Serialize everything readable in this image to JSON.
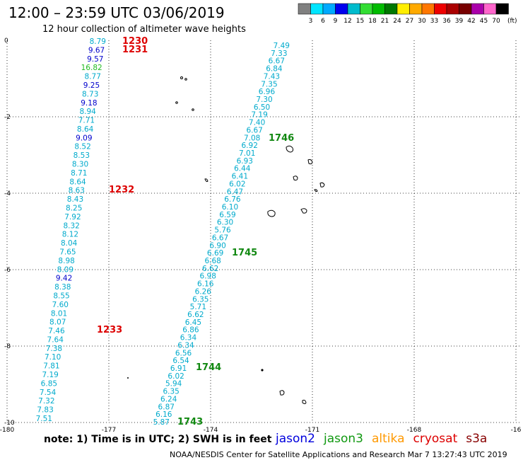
{
  "title": "12:00 – 23:59 UTC 03/06/2019",
  "subtitle": "12 hour collection of altimeter wave heights",
  "colorbar": {
    "labels": [
      "3",
      "6",
      "9",
      "12",
      "15",
      "18",
      "21",
      "24",
      "27",
      "30",
      "33",
      "36",
      "39",
      "42",
      "45",
      "70"
    ],
    "unit": "(ft)",
    "colors": [
      "#808080",
      "#00e5ff",
      "#00aaff",
      "#0000ee",
      "#00bbcc",
      "#33dd33",
      "#00bb00",
      "#007700",
      "#ffee00",
      "#ffaa00",
      "#ff7700",
      "#ee0000",
      "#aa0000",
      "#770000",
      "#aa00aa",
      "#ff66cc",
      "#000000"
    ]
  },
  "axes": {
    "lon_ticks": [
      "-180",
      "-177",
      "-174",
      "-171",
      "-168",
      "-16"
    ],
    "lat_ticks": [
      "0",
      "-2",
      "-4",
      "-6",
      "-8",
      "-10"
    ]
  },
  "track1": {
    "color": "#00aacc",
    "values": [
      "8.79",
      "9.67",
      "9.57",
      "16.82",
      "8.77",
      "9.25",
      "8.73",
      "9.18",
      "8.94",
      "7.71",
      "8.64",
      "9.09",
      "8.52",
      "8.53",
      "8.30",
      "8.71",
      "8.64",
      "8.63",
      "8.43",
      "8.25",
      "7.92",
      "8.32",
      "8.12",
      "8.04",
      "7.65",
      "8.98",
      "8.09",
      "9.42",
      "8.38",
      "8.55",
      "7.60",
      "8.01",
      "8.07",
      "7.46",
      "7.64",
      "7.38",
      "7.10",
      "7.81",
      "7.19",
      "6.85",
      "7.54",
      "7.32",
      "7.83",
      "7.51"
    ],
    "colors": {
      "1": "#0000cc",
      "2": "#0000cc",
      "3": "#22bb22",
      "5": "#0000cc",
      "7": "#0000cc",
      "11": "#0000cc",
      "27": "#0000cc"
    }
  },
  "track2": {
    "color": "#00aacc",
    "values": [
      "7.49",
      "7.33",
      "6.67",
      "6.84",
      "7.43",
      "7.35",
      "6.96",
      "7.30",
      "6.50",
      "7.19",
      "7.40",
      "6.67",
      "7.08",
      "6.92",
      "7.01",
      "6.93",
      "6.44",
      "6.41",
      "6.02",
      "6.47",
      "6.76",
      "6.10",
      "6.59",
      "6.30",
      "5.76",
      "6.67",
      "6.90",
      "6.69",
      "6.68",
      "6.62",
      "6.98",
      "6.16",
      "6.26",
      "6.35",
      "5.71",
      "6.62",
      "6.45",
      "6.86",
      "6.34",
      "6.34",
      "6.56",
      "6.54",
      "6.91",
      "6.02",
      "5.94",
      "6.35",
      "6.24",
      "6.87",
      "6.16",
      "5.87"
    ]
  },
  "time_labels": {
    "cryosat": [
      {
        "text": "1230",
        "color": "#dd0000"
      },
      {
        "text": "1231",
        "color": "#dd0000"
      },
      {
        "text": "1232",
        "color": "#dd0000"
      },
      {
        "text": "1233",
        "color": "#dd0000"
      }
    ],
    "jason3": [
      {
        "text": "1746",
        "color": "#118811"
      },
      {
        "text": "1745",
        "color": "#118811"
      },
      {
        "text": "1744",
        "color": "#118811"
      },
      {
        "text": "1743",
        "color": "#118811"
      }
    ]
  },
  "note": "note:  1) Time is in UTC; 2) SWH is in feet",
  "legend": [
    {
      "name": "jason2",
      "color": "#0000dd"
    },
    {
      "name": "jason3",
      "color": "#119911"
    },
    {
      "name": "altika",
      "color": "#ff9900"
    },
    {
      "name": "cryosat",
      "color": "#dd0000"
    },
    {
      "name": "s3a",
      "color": "#880000"
    }
  ],
  "credit": "NOAA/NESDIS Center for Satellite Applications and Research    Mar  7 13:27:43 UTC 2019"
}
